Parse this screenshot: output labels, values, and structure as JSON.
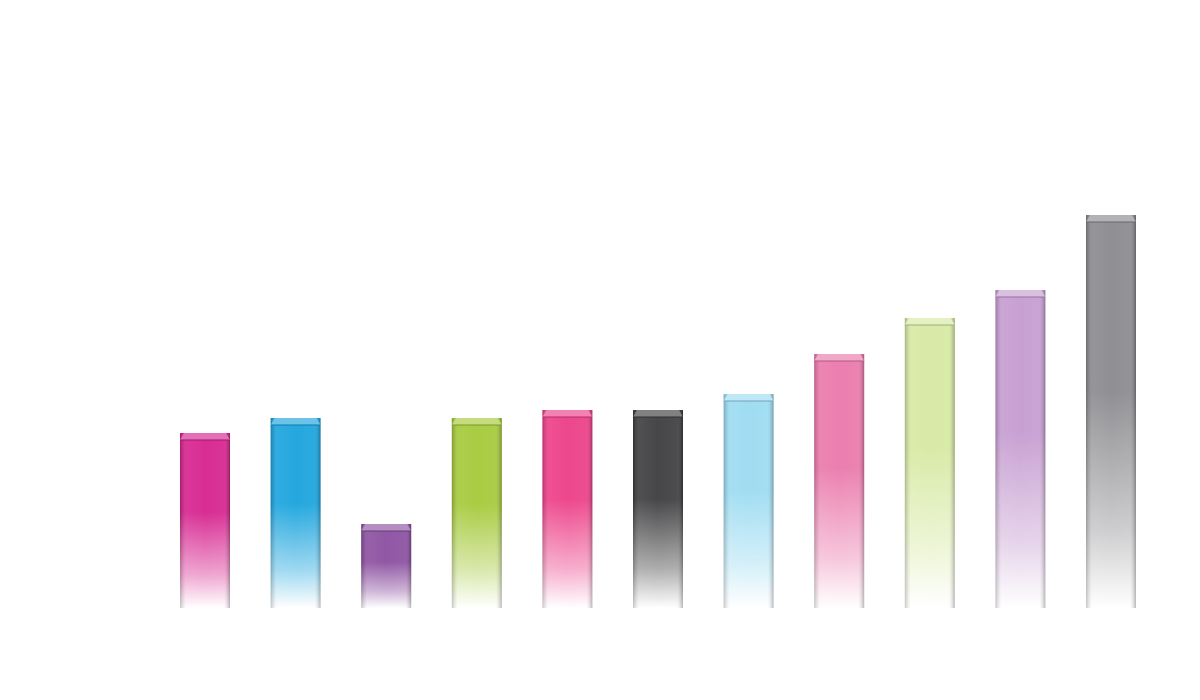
{
  "chart_data": {
    "type": "bar",
    "title": "",
    "xlabel": "",
    "ylabel": "",
    "categories": [
      "",
      "",
      "",
      "",
      "",
      "",
      "",
      "",
      "",
      "",
      ""
    ],
    "values": [
      175,
      190,
      84,
      190,
      198,
      198,
      214,
      254,
      290,
      318,
      393
    ],
    "ylim": [
      0,
      600
    ],
    "grid": false,
    "legend": "none",
    "colors": [
      "#d6228e",
      "#19a3dd",
      "#8b4fa0",
      "#a4c939",
      "#ec3e87",
      "#3d3d3f",
      "#9bdbf1",
      "#ea78ab",
      "#d6e9a2",
      "#c59cd0",
      "#8a898d"
    ]
  }
}
